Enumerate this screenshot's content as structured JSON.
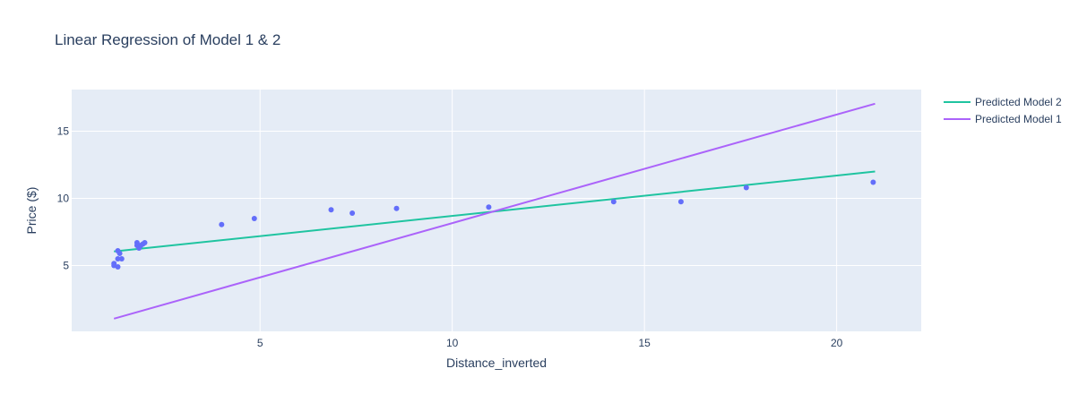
{
  "chart_data": {
    "type": "scatter",
    "title": "Linear Regression of Model 1 & 2",
    "xlabel": "Distance_inverted",
    "ylabel": "Price ($)",
    "xlim": [
      0.1,
      22.2
    ],
    "ylim": [
      0.1,
      18.1
    ],
    "x_ticks": [
      5,
      10,
      15,
      20
    ],
    "y_ticks": [
      5,
      10,
      15
    ],
    "grid": true,
    "legend_position": "top-right outside",
    "colors": {
      "plot_background": "#e5ecf6",
      "grid": "#ffffff",
      "points": "#636efa",
      "model2": "#1fc4a0",
      "model1": "#ab63fa"
    },
    "series": [
      {
        "name": "Predicted Model 2",
        "kind": "line",
        "x": [
          1.2,
          21.0
        ],
        "y": [
          6.05,
          12.0
        ]
      },
      {
        "name": "Predicted Model 1",
        "kind": "line",
        "x": [
          1.2,
          21.0
        ],
        "y": [
          1.05,
          17.05
        ]
      },
      {
        "kind": "scatter",
        "x": [
          1.2,
          1.2,
          1.3,
          1.3,
          1.35,
          1.3,
          1.4,
          1.8,
          1.8,
          1.85,
          1.9,
          1.95,
          2.0,
          4.0,
          4.85,
          6.85,
          7.4,
          8.55,
          10.95,
          14.2,
          15.95,
          17.65,
          20.95
        ],
        "y": [
          5.15,
          5.0,
          4.9,
          6.1,
          5.9,
          5.5,
          5.5,
          6.7,
          6.5,
          6.3,
          6.5,
          6.6,
          6.7,
          8.05,
          8.5,
          9.15,
          8.9,
          9.25,
          9.35,
          9.75,
          9.75,
          10.8,
          11.2
        ]
      }
    ]
  }
}
